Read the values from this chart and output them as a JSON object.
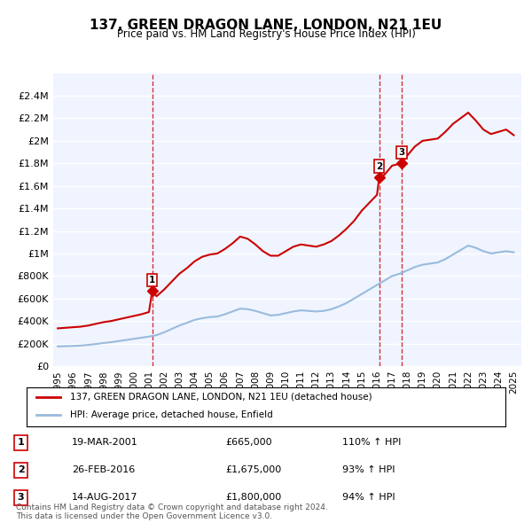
{
  "title": "137, GREEN DRAGON LANE, LONDON, N21 1EU",
  "subtitle": "Price paid vs. HM Land Registry's House Price Index (HPI)",
  "ylabel": "",
  "ylim": [
    0,
    2600000
  ],
  "yticks": [
    0,
    200000,
    400000,
    600000,
    800000,
    1000000,
    1200000,
    1400000,
    1600000,
    1800000,
    2000000,
    2200000,
    2400000
  ],
  "ytick_labels": [
    "£0",
    "£200K",
    "£400K",
    "£600K",
    "£800K",
    "£1M",
    "£1.2M",
    "£1.4M",
    "£1.6M",
    "£1.8M",
    "£2M",
    "£2.2M",
    "£2.4M"
  ],
  "background_color": "#ffffff",
  "plot_bg_color": "#f0f4ff",
  "grid_color": "#ffffff",
  "red_line_color": "#cc0000",
  "blue_line_color": "#99bbdd",
  "marker_color": "#cc0000",
  "vline_color": "#cc0000",
  "legend_label_red": "137, GREEN DRAGON LANE, LONDON, N21 1EU (detached house)",
  "legend_label_blue": "HPI: Average price, detached house, Enfield",
  "footnote": "Contains HM Land Registry data © Crown copyright and database right 2024.\nThis data is licensed under the Open Government Licence v3.0.",
  "transactions": [
    {
      "num": 1,
      "date": "19-MAR-2001",
      "price": 665000,
      "hpi_pct": "110%",
      "direction": "↑",
      "year_x": 2001.21
    },
    {
      "num": 2,
      "date": "26-FEB-2016",
      "price": 1675000,
      "hpi_pct": "93%",
      "direction": "↑",
      "year_x": 2016.15
    },
    {
      "num": 3,
      "date": "14-AUG-2017",
      "price": 1800000,
      "hpi_pct": "94%",
      "direction": "↑",
      "year_x": 2017.62
    }
  ],
  "red_line": {
    "x": [
      1995.0,
      1995.5,
      1996.0,
      1996.5,
      1997.0,
      1997.5,
      1998.0,
      1998.5,
      1999.0,
      1999.5,
      2000.0,
      2000.5,
      2001.0,
      2001.21,
      2001.5,
      2002.0,
      2002.5,
      2003.0,
      2003.5,
      2004.0,
      2004.5,
      2005.0,
      2005.5,
      2006.0,
      2006.5,
      2007.0,
      2007.5,
      2008.0,
      2008.5,
      2009.0,
      2009.5,
      2010.0,
      2010.5,
      2011.0,
      2011.5,
      2012.0,
      2012.5,
      2013.0,
      2013.5,
      2014.0,
      2014.5,
      2015.0,
      2015.5,
      2016.0,
      2016.15,
      2016.5,
      2017.0,
      2017.62,
      2018.0,
      2018.5,
      2019.0,
      2019.5,
      2020.0,
      2020.5,
      2021.0,
      2021.5,
      2022.0,
      2022.5,
      2023.0,
      2023.5,
      2024.0,
      2024.5,
      2025.0
    ],
    "y": [
      335000,
      340000,
      345000,
      350000,
      360000,
      375000,
      390000,
      400000,
      415000,
      430000,
      445000,
      460000,
      480000,
      665000,
      620000,
      680000,
      750000,
      820000,
      870000,
      930000,
      970000,
      990000,
      1000000,
      1040000,
      1090000,
      1150000,
      1130000,
      1080000,
      1020000,
      980000,
      980000,
      1020000,
      1060000,
      1080000,
      1070000,
      1060000,
      1080000,
      1110000,
      1160000,
      1220000,
      1290000,
      1380000,
      1450000,
      1520000,
      1675000,
      1700000,
      1780000,
      1800000,
      1870000,
      1950000,
      2000000,
      2010000,
      2020000,
      2080000,
      2150000,
      2200000,
      2250000,
      2180000,
      2100000,
      2060000,
      2080000,
      2100000,
      2050000
    ]
  },
  "blue_line": {
    "x": [
      1995.0,
      1995.5,
      1996.0,
      1996.5,
      1997.0,
      1997.5,
      1998.0,
      1998.5,
      1999.0,
      1999.5,
      2000.0,
      2000.5,
      2001.0,
      2001.5,
      2002.0,
      2002.5,
      2003.0,
      2003.5,
      2004.0,
      2004.5,
      2005.0,
      2005.5,
      2006.0,
      2006.5,
      2007.0,
      2007.5,
      2008.0,
      2008.5,
      2009.0,
      2009.5,
      2010.0,
      2010.5,
      2011.0,
      2011.5,
      2012.0,
      2012.5,
      2013.0,
      2013.5,
      2014.0,
      2014.5,
      2015.0,
      2015.5,
      2016.0,
      2016.5,
      2017.0,
      2017.5,
      2018.0,
      2018.5,
      2019.0,
      2019.5,
      2020.0,
      2020.5,
      2021.0,
      2021.5,
      2022.0,
      2022.5,
      2023.0,
      2023.5,
      2024.0,
      2024.5,
      2025.0
    ],
    "y": [
      175000,
      177000,
      179000,
      182000,
      188000,
      196000,
      205000,
      212000,
      222000,
      232000,
      242000,
      252000,
      262000,
      275000,
      300000,
      330000,
      360000,
      385000,
      410000,
      425000,
      435000,
      440000,
      460000,
      485000,
      510000,
      505000,
      490000,
      470000,
      450000,
      455000,
      470000,
      485000,
      495000,
      490000,
      485000,
      490000,
      505000,
      530000,
      560000,
      600000,
      640000,
      680000,
      720000,
      760000,
      800000,
      820000,
      850000,
      880000,
      900000,
      910000,
      920000,
      950000,
      990000,
      1030000,
      1070000,
      1050000,
      1020000,
      1000000,
      1010000,
      1020000,
      1010000
    ]
  },
  "xtick_years": [
    1995,
    1996,
    1997,
    1998,
    1999,
    2000,
    2001,
    2002,
    2003,
    2004,
    2005,
    2006,
    2007,
    2008,
    2009,
    2010,
    2011,
    2012,
    2013,
    2014,
    2015,
    2016,
    2017,
    2018,
    2019,
    2020,
    2021,
    2022,
    2023,
    2024,
    2025
  ]
}
